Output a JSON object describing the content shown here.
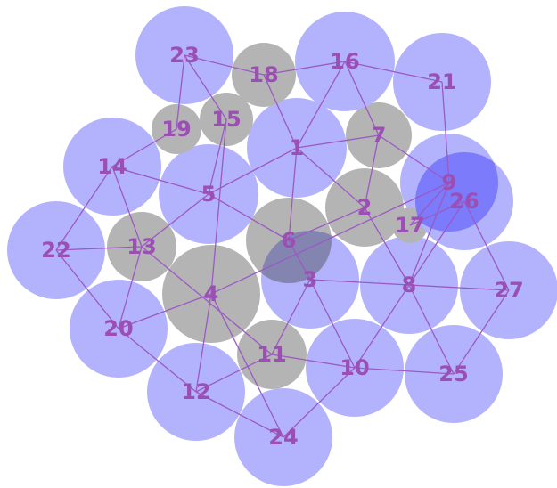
{
  "colors": {
    "blue": "#b3b3fd",
    "gray": "#b4b4b4",
    "dark_blue": "#7b7bfb",
    "dark_gray": "#8484b0",
    "edge": "#9b59c4",
    "label": "#9b4fb4"
  },
  "nodes": [
    {
      "id": "1",
      "label": "1",
      "type": "blue"
    },
    {
      "id": "2",
      "label": "2",
      "type": "gray"
    },
    {
      "id": "3",
      "label": "3",
      "type": "blue"
    },
    {
      "id": "4",
      "label": "4",
      "type": "gray"
    },
    {
      "id": "5",
      "label": "5",
      "type": "blue"
    },
    {
      "id": "6",
      "label": "6",
      "type": "gray"
    },
    {
      "id": "7",
      "label": "7",
      "type": "gray"
    },
    {
      "id": "8",
      "label": "8",
      "type": "blue"
    },
    {
      "id": "9",
      "label": "9",
      "type": "blue"
    },
    {
      "id": "10",
      "label": "10",
      "type": "blue"
    },
    {
      "id": "11",
      "label": "11",
      "type": "gray"
    },
    {
      "id": "12",
      "label": "12",
      "type": "blue"
    },
    {
      "id": "13",
      "label": "13",
      "type": "gray"
    },
    {
      "id": "14",
      "label": "14",
      "type": "blue"
    },
    {
      "id": "15",
      "label": "15",
      "type": "gray"
    },
    {
      "id": "16",
      "label": "16",
      "type": "blue"
    },
    {
      "id": "17",
      "label": "17",
      "type": "gray"
    },
    {
      "id": "18",
      "label": "18",
      "type": "gray"
    },
    {
      "id": "19",
      "label": "19",
      "type": "gray"
    },
    {
      "id": "20",
      "label": "20",
      "type": "blue"
    },
    {
      "id": "21",
      "label": "21",
      "type": "blue"
    },
    {
      "id": "22",
      "label": "22",
      "type": "blue"
    },
    {
      "id": "23",
      "label": "23",
      "type": "blue"
    },
    {
      "id": "24",
      "label": "24",
      "type": "blue"
    },
    {
      "id": "25",
      "label": "25",
      "type": "blue"
    },
    {
      "id": "26",
      "label": "26",
      "type": "blue"
    },
    {
      "id": "27",
      "label": "27",
      "type": "blue"
    }
  ],
  "edges": [
    [
      "23",
      "18"
    ],
    [
      "23",
      "15"
    ],
    [
      "23",
      "19"
    ],
    [
      "18",
      "16"
    ],
    [
      "18",
      "1"
    ],
    [
      "16",
      "21"
    ],
    [
      "16",
      "1"
    ],
    [
      "16",
      "7"
    ],
    [
      "21",
      "9"
    ],
    [
      "7",
      "1"
    ],
    [
      "7",
      "9"
    ],
    [
      "7",
      "2"
    ],
    [
      "19",
      "14"
    ],
    [
      "14",
      "5"
    ],
    [
      "14",
      "22"
    ],
    [
      "14",
      "13"
    ],
    [
      "15",
      "5"
    ],
    [
      "15",
      "4"
    ],
    [
      "5",
      "1"
    ],
    [
      "5",
      "13"
    ],
    [
      "5",
      "6"
    ],
    [
      "1",
      "6"
    ],
    [
      "1",
      "2"
    ],
    [
      "2",
      "8"
    ],
    [
      "2",
      "6"
    ],
    [
      "9",
      "17"
    ],
    [
      "9",
      "8"
    ],
    [
      "9",
      "4"
    ],
    [
      "26",
      "17"
    ],
    [
      "26",
      "27"
    ],
    [
      "26",
      "10"
    ],
    [
      "6",
      "3"
    ],
    [
      "22",
      "13"
    ],
    [
      "22",
      "20"
    ],
    [
      "13",
      "20"
    ],
    [
      "13",
      "11"
    ],
    [
      "3",
      "27"
    ],
    [
      "3",
      "10"
    ],
    [
      "3",
      "11"
    ],
    [
      "4",
      "20"
    ],
    [
      "4",
      "12"
    ],
    [
      "4",
      "24"
    ],
    [
      "8",
      "25"
    ],
    [
      "11",
      "12"
    ],
    [
      "11",
      "10"
    ],
    [
      "10",
      "25"
    ],
    [
      "10",
      "24"
    ],
    [
      "12",
      "20"
    ],
    [
      "12",
      "24"
    ],
    [
      "27",
      "25"
    ]
  ]
}
